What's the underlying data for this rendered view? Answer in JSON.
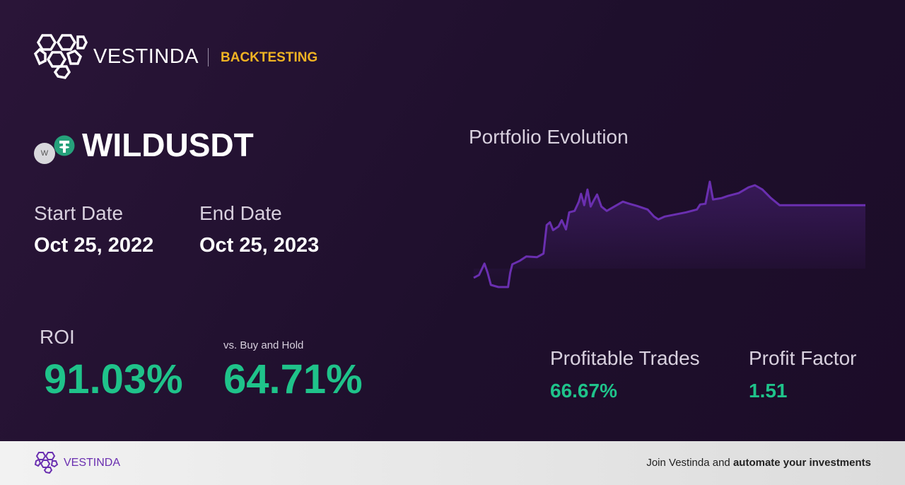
{
  "header": {
    "brand": "VESTINDA",
    "section": "BACKTESTING"
  },
  "asset": {
    "badge": "W",
    "symbol": "WILDUSDT"
  },
  "dates": {
    "start_label": "Start Date",
    "start": "Oct 25, 2022",
    "end_label": "End Date",
    "end": "Oct 25, 2023"
  },
  "roi": {
    "label": "ROI",
    "value": "91.03%",
    "compare_label": "vs. Buy and Hold",
    "compare_value": "64.71%"
  },
  "stats": [
    {
      "label": "Profitable Trades",
      "value": "66.67%"
    },
    {
      "label": "Profit Factor",
      "value": "1.51"
    }
  ],
  "chart_data": {
    "type": "line",
    "title": "Portfolio Evolution",
    "color": "#6a2fb0",
    "x": [
      0,
      5,
      10,
      13,
      16,
      23,
      32,
      34,
      36,
      43,
      49,
      59,
      65,
      68,
      71,
      74,
      79,
      82,
      86,
      89,
      94,
      98,
      100,
      103,
      106,
      109,
      112,
      115,
      119,
      124,
      131,
      139,
      145,
      152,
      162,
      168,
      172,
      178,
      188,
      198,
      208,
      211,
      216,
      220,
      223,
      231,
      237,
      247,
      256,
      262,
      269,
      277,
      285,
      303,
      365
    ],
    "values": [
      100,
      103.6,
      118,
      106.3,
      91,
      88.3,
      88.3,
      106.3,
      117.1,
      121.6,
      127,
      126.1,
      130.6,
      166.6,
      170.2,
      160.3,
      164.8,
      172.9,
      161.2,
      182.8,
      184.6,
      196.3,
      206.2,
      191.8,
      211.6,
      190,
      198.1,
      205.3,
      190,
      184.6,
      190,
      196.3,
      193.6,
      190.9,
      186.4,
      177.4,
      173.8,
      177.4,
      180.1,
      182.8,
      186.4,
      192.7,
      193.6,
      221.5,
      199,
      200.8,
      203.5,
      207.1,
      214.3,
      217,
      211.6,
      200.8,
      191.8,
      191.8,
      191.8
    ]
  },
  "footer": {
    "brand": "VESTINDA",
    "cta_prefix": "Join Vestinda and",
    "cta_bold": "automate your investments"
  }
}
